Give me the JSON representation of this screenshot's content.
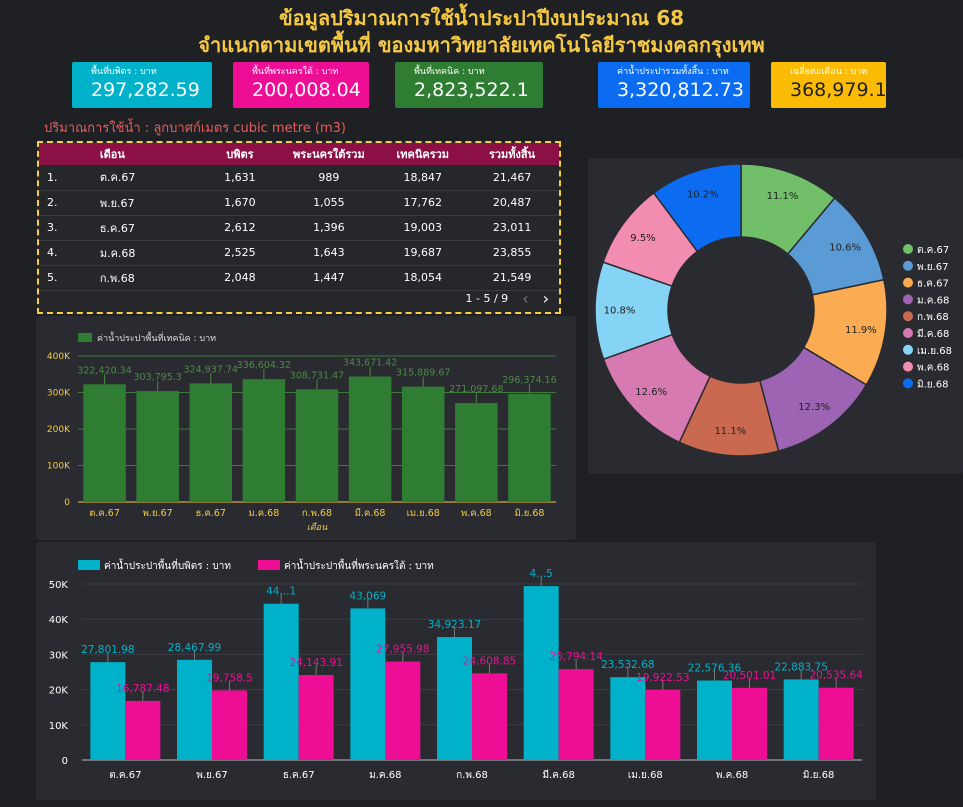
{
  "title": {
    "line1": "ข้อมูลปริมาณการใช้น้ำประปาปีงบประมาณ 68",
    "line2": "จำแนกตามเขตพื้นที่ ของมหาวิทยาลัยเทคโนโลยีราชมงคลกรุงเทพ"
  },
  "kpis": [
    {
      "label": "พื้นที่บพิตร : บาท",
      "value": "297,282.59",
      "color": "#00b2c9"
    },
    {
      "label": "พื้นที่พระนครใต้ : บาท",
      "value": "200,008.04",
      "color": "#ee0e95"
    },
    {
      "label": "พื้นที่เทคนิค : บาท",
      "value": "2,823,522.1",
      "color": "#2e7d32"
    },
    {
      "label": "ค่าน้ำประปารวมทั้งสิ้น : บาท",
      "value": "3,320,812.73",
      "color": "#0b6cf2"
    },
    {
      "label": "เฉลี่ยต่อเดือน : บาท",
      "value": "368,979.19",
      "color": "#fcbc05"
    }
  ],
  "unit_caption": "ปริมาณการใช้น้ำ : ลูกบาศก์เมตร cubic metre (m3)",
  "table": {
    "headers": [
      "เดือน",
      "บพิตร",
      "พระนครใต้รวม",
      "เทคนิครวม",
      "รวมทั้งสิ้น"
    ],
    "rows": [
      [
        "1.",
        "ต.ค.67",
        "1,631",
        "989",
        "18,847",
        "21,467"
      ],
      [
        "2.",
        "พ.ย.67",
        "1,670",
        "1,055",
        "17,762",
        "20,487"
      ],
      [
        "3.",
        "ธ.ค.67",
        "2,612",
        "1,396",
        "19,003",
        "23,011"
      ],
      [
        "4.",
        "ม.ค.68",
        "2,525",
        "1,643",
        "19,687",
        "23,855"
      ],
      [
        "5.",
        "ก.พ.68",
        "2,048",
        "1,447",
        "18,054",
        "21,549"
      ]
    ],
    "pagination": "1 - 5 / 9"
  },
  "chart_data": [
    {
      "type": "bar",
      "legend": "ค่าน้ำประปาพื้นที่เทคนิค : บาท",
      "xlabel": "เดือน",
      "categories": [
        "ต.ค.67",
        "พ.ย.67",
        "ธ.ค.67",
        "ม.ค.68",
        "ก.พ.68",
        "มี.ค.68",
        "เม.ย.68",
        "พ.ค.68",
        "มิ.ย.68"
      ],
      "values": [
        322420.34,
        303795.3,
        324937.74,
        336604.32,
        308731.47,
        343671.42,
        315889.67,
        271097.68,
        296374.16
      ],
      "labels": [
        "322,420.34",
        "303,795.3",
        "324,937.74",
        "336,604.32",
        "308,731.47",
        "343,671.42",
        "315,889.67",
        "271,097.68",
        "296,374.16"
      ],
      "yticks": [
        "0",
        "100K",
        "200K",
        "300K",
        "400K"
      ],
      "ylim": [
        0,
        400000
      ],
      "color": "#2e7d32"
    },
    {
      "type": "pie",
      "categories": [
        "ต.ค.67",
        "พ.ย.67",
        "ธ.ค.67",
        "ม.ค.68",
        "ก.พ.68",
        "มี.ค.68",
        "เม.ย.68",
        "พ.ค.68",
        "มิ.ย.68"
      ],
      "values": [
        11.1,
        10.6,
        11.9,
        12.3,
        11.1,
        12.6,
        10.8,
        9.5,
        10.2
      ],
      "labels": [
        "11.1%",
        "10.6%",
        "11.9%",
        "12.3%",
        "11.1%",
        "12.6%",
        "10.8%",
        "9.5%",
        "10.2%"
      ],
      "colors": [
        "#72bf6a",
        "#5b9bd5",
        "#fbab52",
        "#9c64b3",
        "#c96a50",
        "#d67ab1",
        "#85d4f5",
        "#f28cb0",
        "#0b6cf2"
      ],
      "legend_position": "right"
    },
    {
      "type": "bar",
      "categories": [
        "ต.ค.67",
        "พ.ย.67",
        "ธ.ค.67",
        "ม.ค.68",
        "ก.พ.68",
        "มี.ค.68",
        "เม.ย.68",
        "พ.ค.68",
        "มิ.ย.68"
      ],
      "series": [
        {
          "name": "ค่าน้ำประปาพื้นที่บพิตร : บาท",
          "color": "#00b2c9",
          "values": [
            27801.98,
            28467.99,
            44400,
            43069,
            34923.17,
            49400,
            23532.68,
            22576.36,
            22883.75
          ],
          "labels": [
            "27,801.98",
            "28,467.99",
            "44,..1",
            "43,069",
            "34,923.17",
            "4...5",
            "23,532.68",
            "22,576.36",
            "22,883.75"
          ]
        },
        {
          "name": "ค่าน้ำประปาพื้นที่พระนครใต้ : บาท",
          "color": "#ee0e95",
          "values": [
            16787.48,
            19758.5,
            24143.91,
            27955.98,
            24608.85,
            25794.14,
            19922.53,
            20501.01,
            20535.64
          ],
          "labels": [
            "16,787.48",
            "19,758.5",
            "24,143.91",
            "27,955.98",
            "24,608.85",
            "25,794.14",
            "19,922.53",
            "20,501.01",
            "20,535.64"
          ]
        }
      ],
      "yticks": [
        "0",
        "10K",
        "20K",
        "30K",
        "40K",
        "50K"
      ],
      "ylim": [
        0,
        50000
      ]
    }
  ]
}
